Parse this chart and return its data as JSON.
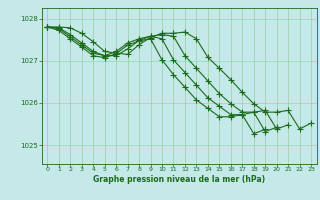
{
  "title": "Graphe pression niveau de la mer (hPa)",
  "xlabel": "Graphe pression niveau de la mer (hPa)",
  "ylim": [
    1024.55,
    1028.25
  ],
  "xlim": [
    -0.5,
    23.5
  ],
  "yticks": [
    1025,
    1026,
    1027,
    1028
  ],
  "xticks": [
    0,
    1,
    2,
    3,
    4,
    5,
    6,
    7,
    8,
    9,
    10,
    11,
    12,
    13,
    14,
    15,
    16,
    17,
    18,
    19,
    20,
    21,
    22,
    23
  ],
  "bg_color": "#c5e8e8",
  "grid_color_h": "#f0a0a0",
  "grid_color_v": "#90c490",
  "line_color": "#1a6b1a",
  "line_width": 0.8,
  "marker": "+",
  "marker_size": 4,
  "marker_ew": 0.8,
  "lines": [
    [
      1027.8,
      1027.8,
      1027.78,
      1027.65,
      1027.45,
      1027.22,
      1027.18,
      1027.15,
      1027.38,
      1027.55,
      1027.65,
      1027.65,
      1027.68,
      1027.52,
      1027.08,
      1026.82,
      1026.55,
      1026.25,
      1025.98,
      1025.78,
      1025.78,
      1025.82,
      1025.38,
      1025.52
    ],
    [
      1027.8,
      1027.78,
      1027.62,
      1027.42,
      1027.22,
      1027.12,
      1027.12,
      1027.28,
      1027.48,
      1027.58,
      1027.62,
      1027.58,
      1027.12,
      1026.82,
      1026.52,
      1026.22,
      1025.98,
      1025.78,
      1025.78,
      1025.82,
      1025.38,
      1025.48,
      null,
      null
    ],
    [
      1027.8,
      1027.76,
      1027.57,
      1027.37,
      1027.18,
      1027.12,
      1027.22,
      1027.42,
      1027.52,
      1027.58,
      1027.52,
      1027.02,
      1026.72,
      1026.42,
      1026.12,
      1025.92,
      1025.72,
      1025.72,
      1025.78,
      1025.32,
      1025.42,
      null,
      null,
      null
    ],
    [
      1027.8,
      1027.72,
      1027.52,
      1027.32,
      1027.12,
      1027.07,
      1027.17,
      1027.37,
      1027.47,
      1027.52,
      1027.02,
      1026.67,
      1026.37,
      1026.07,
      1025.87,
      1025.67,
      1025.67,
      1025.72,
      1025.27,
      1025.37,
      null,
      null,
      null,
      null
    ]
  ]
}
